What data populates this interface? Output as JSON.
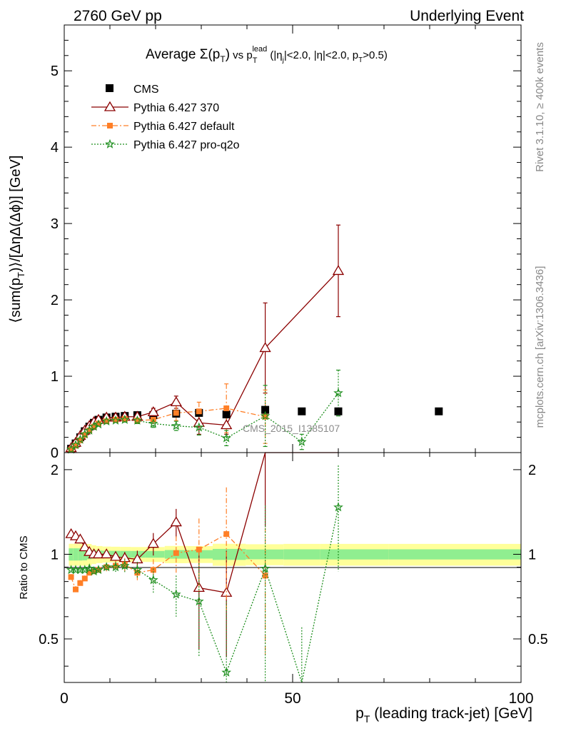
{
  "header": {
    "left": "2760 GeV pp",
    "right": "Underlying Event"
  },
  "title": {
    "prefix": "Average ",
    "sigma": "Σ(p",
    "sigma_sub": "T",
    "sigma_close": ")",
    "vs": " vs p",
    "vs_sub": "T",
    "vs_sup": "lead",
    "cuts_open": " (|η",
    "cuts_j": "j",
    "cuts_mid": "|<2.0, |η|<2.0, p",
    "cuts_sub": "T",
    "cuts_end": ">0.5)"
  },
  "side": {
    "rivet": "Rivet 3.1.10, ≥ 400k events",
    "mcplots": "mcplots.cern.ch [arXiv:1306.3436]"
  },
  "watermark": "CMS_2015_I1385107",
  "axes": {
    "ylabel_main_a": "⟨sum(p",
    "ylabel_main_sub": "T",
    "ylabel_main_b": ")⟩/[ΔηΔ(Δϕ)] [GeV]",
    "ylabel_ratio": "Ratio to CMS",
    "xlabel_a": "p",
    "xlabel_sub": "T",
    "xlabel_b": " (leading track-jet) [GeV]",
    "main_ticks": [
      "0",
      "1",
      "2",
      "3",
      "4",
      "5"
    ],
    "ratio_ticks": [
      "0.5",
      "1",
      "2"
    ],
    "x_ticks": [
      "0",
      "50",
      "100"
    ]
  },
  "legend": [
    {
      "label": "CMS",
      "color": "#000000",
      "marker": "square",
      "line": "none"
    },
    {
      "label": "Pythia 6.427 370",
      "color": "#8b0000",
      "marker": "triangle-open",
      "line": "solid"
    },
    {
      "label": "Pythia 6.427 default",
      "color": "#ff7f27",
      "marker": "square-small",
      "line": "dashdot"
    },
    {
      "label": "Pythia 6.427 pro-q2o",
      "color": "#1f8f1f",
      "marker": "star",
      "line": "dotted"
    }
  ],
  "chart_data": {
    "type": "scatter",
    "xlim": [
      0,
      100
    ],
    "ylim_main": [
      0,
      5.6
    ],
    "ylim_ratio": [
      0.35,
      2.3
    ],
    "ratio_scale": "log",
    "grid": false,
    "legend_position": "top-left",
    "band_colors": {
      "inner": "#90ee90",
      "outer": "#ffff99"
    },
    "cms": {
      "x": [
        1.5,
        2.5,
        3.5,
        4.5,
        5.5,
        6.5,
        7.5,
        9.25,
        11.25,
        13.25,
        16.0,
        19.5,
        24.5,
        29.5,
        35.5,
        44.0,
        52.0,
        60.0,
        82.0
      ],
      "y": [
        0.05,
        0.12,
        0.2,
        0.28,
        0.34,
        0.39,
        0.43,
        0.46,
        0.47,
        0.48,
        0.49,
        0.49,
        0.51,
        0.52,
        0.5,
        0.56,
        0.54,
        0.54,
        0.54
      ],
      "band_inner": [
        0.03,
        0.03,
        0.03,
        0.03,
        0.03,
        0.03,
        0.03,
        0.03,
        0.03,
        0.03,
        0.03,
        0.03,
        0.04,
        0.04,
        0.05,
        0.05,
        0.05,
        0.05,
        0.05
      ],
      "band_outer": [
        0.06,
        0.06,
        0.05,
        0.05,
        0.05,
        0.05,
        0.05,
        0.05,
        0.05,
        0.05,
        0.05,
        0.05,
        0.06,
        0.06,
        0.08,
        0.08,
        0.08,
        0.08,
        0.08
      ]
    },
    "series": [
      {
        "name": "Pythia 6.427 370",
        "x": [
          1.5,
          2.5,
          3.5,
          4.5,
          5.5,
          6.5,
          7.5,
          9.25,
          11.25,
          13.25,
          16.0,
          19.5,
          24.5,
          29.5,
          35.5,
          44.0,
          60.0
        ],
        "y": [
          0.06,
          0.13,
          0.22,
          0.29,
          0.35,
          0.4,
          0.43,
          0.46,
          0.46,
          0.47,
          0.47,
          0.53,
          0.66,
          0.39,
          0.36,
          1.37,
          2.38
        ],
        "err": [
          0.01,
          0.01,
          0.01,
          0.01,
          0.01,
          0.01,
          0.01,
          0.02,
          0.02,
          0.03,
          0.04,
          0.05,
          0.08,
          0.15,
          0.12,
          0.59,
          0.6
        ],
        "ratio": [
          1.18,
          1.16,
          1.13,
          1.06,
          1.02,
          1.0,
          1.0,
          1.0,
          0.98,
          0.97,
          0.96,
          1.09,
          1.3,
          0.76,
          0.73,
          2.45,
          null
        ],
        "ratio_err": [
          0.02,
          0.02,
          0.02,
          0.02,
          0.02,
          0.02,
          0.02,
          0.03,
          0.04,
          0.05,
          0.07,
          0.1,
          0.15,
          0.3,
          0.3,
          1.2,
          null
        ]
      },
      {
        "name": "Pythia 6.427 default",
        "x": [
          1.5,
          2.5,
          3.5,
          4.5,
          5.5,
          6.5,
          7.5,
          9.25,
          11.25,
          13.25,
          16.0,
          19.5,
          24.5,
          29.5,
          35.5,
          44.0
        ],
        "y": [
          0.04,
          0.09,
          0.16,
          0.23,
          0.29,
          0.34,
          0.38,
          0.41,
          0.43,
          0.44,
          0.42,
          0.43,
          0.52,
          0.54,
          0.58,
          0.47
        ],
        "err": [
          0.01,
          0.01,
          0.01,
          0.01,
          0.01,
          0.01,
          0.01,
          0.02,
          0.02,
          0.03,
          0.04,
          0.05,
          0.1,
          0.12,
          0.32,
          0.35
        ],
        "ratio": [
          0.83,
          0.75,
          0.79,
          0.82,
          0.86,
          0.87,
          0.88,
          0.9,
          0.91,
          0.92,
          0.86,
          0.88,
          1.01,
          1.04,
          1.18,
          0.84
        ],
        "ratio_err": [
          0.02,
          0.02,
          0.02,
          0.02,
          0.02,
          0.02,
          0.02,
          0.03,
          0.04,
          0.05,
          0.06,
          0.08,
          0.15,
          0.3,
          0.55,
          0.4
        ]
      },
      {
        "name": "Pythia 6.427 pro-q2o",
        "x": [
          1.5,
          2.5,
          3.5,
          4.5,
          5.5,
          6.5,
          7.5,
          9.25,
          11.25,
          13.25,
          16.0,
          19.5,
          24.5,
          29.5,
          35.5,
          44.0,
          52.0,
          60.0
        ],
        "y": [
          0.04,
          0.1,
          0.17,
          0.24,
          0.29,
          0.34,
          0.37,
          0.41,
          0.42,
          0.43,
          0.42,
          0.38,
          0.35,
          0.33,
          0.19,
          0.48,
          0.14,
          0.78
        ],
        "err": [
          0.01,
          0.01,
          0.01,
          0.01,
          0.01,
          0.01,
          0.01,
          0.02,
          0.02,
          0.03,
          0.04,
          0.05,
          0.06,
          0.1,
          0.1,
          0.4,
          0.1,
          0.3
        ],
        "ratio": [
          0.88,
          0.88,
          0.88,
          0.88,
          0.89,
          0.87,
          0.88,
          0.9,
          0.9,
          0.91,
          0.88,
          0.81,
          0.72,
          0.68,
          0.38,
          0.89,
          0.25,
          1.47
        ],
        "ratio_err": [
          0.02,
          0.02,
          0.02,
          0.02,
          0.02,
          0.02,
          0.02,
          0.03,
          0.04,
          0.05,
          0.06,
          0.08,
          0.12,
          0.25,
          0.3,
          0.6,
          0.3,
          0.6
        ]
      }
    ]
  }
}
